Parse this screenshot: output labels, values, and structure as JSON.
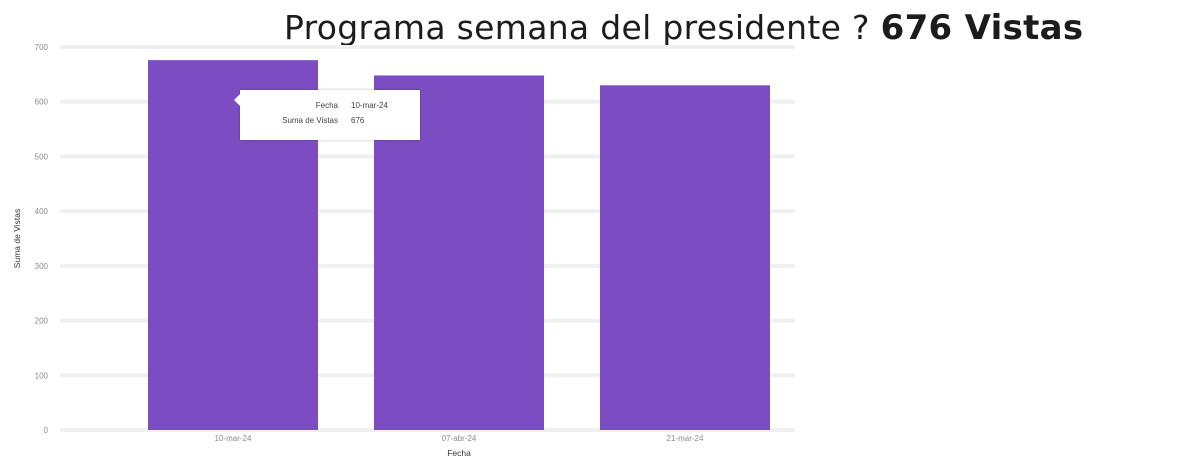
{
  "header": {
    "title": "Programa semana del presidente ?",
    "views": "676 Vistas"
  },
  "tooltip": {
    "date_label": "Fecha",
    "date_value": "10-mar-24",
    "views_label": "Suma de Vistas",
    "views_value": "676"
  },
  "colors": {
    "bar": "#7c4dc2",
    "grid": "#f0f0f0"
  },
  "chart_data": {
    "type": "bar",
    "categories": [
      "10-mar-24",
      "07-abr-24",
      "21-mar-24"
    ],
    "values": [
      676,
      648,
      630
    ],
    "xlabel": "Fecha",
    "ylabel": "Suma de Vistas",
    "ylim": [
      0,
      700
    ],
    "yticks": [
      0,
      100,
      200,
      300,
      400,
      500,
      600,
      700
    ],
    "grid": true
  }
}
